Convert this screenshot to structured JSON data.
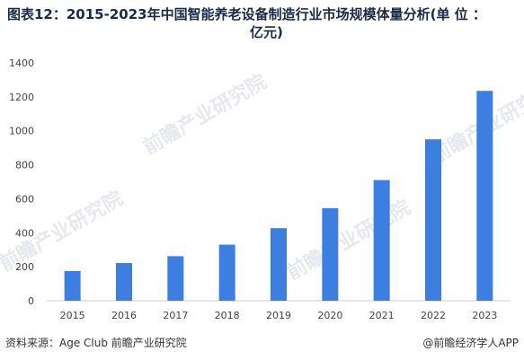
{
  "title_line1": "图表12：2015-2023年中国智能养老设备制造行业市场规模体量分析(单 位 ：",
  "title_line2": "亿元)",
  "watermark_text": "前瞻产业研究院",
  "footer": {
    "source": "资料来源：Age Club 前瞻产业研究院",
    "credit": "@前瞻经济学人APP"
  },
  "chart_data": {
    "type": "bar",
    "categories": [
      "2015",
      "2016",
      "2017",
      "2018",
      "2019",
      "2020",
      "2021",
      "2022",
      "2023"
    ],
    "values": [
      175,
      222,
      262,
      330,
      427,
      545,
      710,
      950,
      1235
    ],
    "ylim": [
      0,
      1400
    ],
    "yticks": [
      0,
      200,
      400,
      600,
      800,
      1000,
      1200,
      1400
    ],
    "grid": false,
    "bar_color": "#3d7fe0"
  }
}
